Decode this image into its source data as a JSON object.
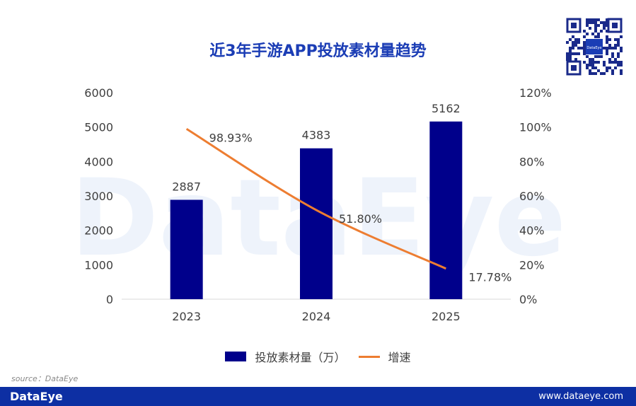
{
  "watermark": "DataEye",
  "chart_data": {
    "type": "bar+line",
    "title": "近3年手游APP投放素材量趋势",
    "categories": [
      "2023",
      "2024",
      "2025"
    ],
    "series": [
      {
        "name": "投放素材量（万）",
        "type": "bar",
        "axis": "left",
        "values": [
          2887,
          4383,
          5162
        ],
        "labels": [
          "2887",
          "4383",
          "5162"
        ],
        "color": "#00008b"
      },
      {
        "name": "增速",
        "type": "line",
        "axis": "right",
        "values": [
          98.93,
          51.8,
          17.78
        ],
        "labels": [
          "98.93%",
          "51.80%",
          "17.78%"
        ],
        "color": "#ed7d31"
      }
    ],
    "ylim": [
      0,
      6000
    ],
    "yticks": [
      "0",
      "1000",
      "2000",
      "3000",
      "4000",
      "5000",
      "6000"
    ],
    "y2lim": [
      0,
      120
    ],
    "y2ticks": [
      "0%",
      "20%",
      "40%",
      "60%",
      "80%",
      "100%",
      "120%"
    ],
    "grid": false,
    "legend": "bottom"
  },
  "source": "source：DataEye",
  "footer": {
    "logo": "DataEye",
    "url": "www.dataeye.com"
  },
  "qr": {
    "label": "DataEye"
  }
}
